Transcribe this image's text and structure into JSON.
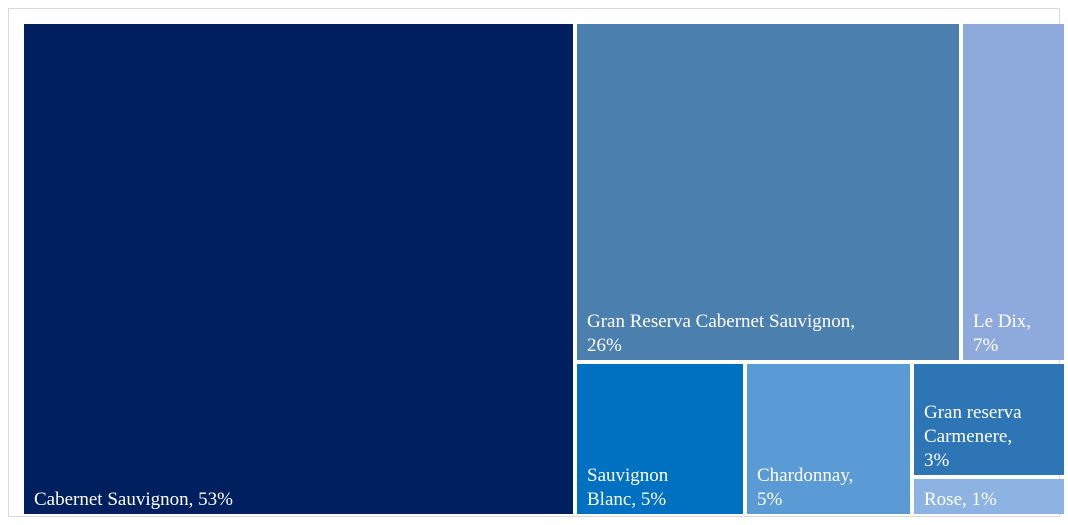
{
  "chart_data": {
    "type": "treemap",
    "title": "",
    "items": [
      {
        "name": "Cabernet Sauvignon",
        "label": "Cabernet Sauvignon, 53%",
        "value": 53,
        "color": "#001f5f"
      },
      {
        "name": "Gran Reserva Cabernet Sauvignon",
        "label": "Gran Reserva Cabernet Sauvignon, 26%",
        "value": 26,
        "color": "#4a7fae"
      },
      {
        "name": "Le Dix",
        "label": "Le Dix, 7%",
        "value": 7,
        "color": "#8eaadc"
      },
      {
        "name": "Sauvignon Blanc",
        "label": "Sauvignon Blanc, 5%",
        "value": 5,
        "color": "#0070c0"
      },
      {
        "name": "Chardonnay",
        "label": "Chardonnay, 5%",
        "value": 5,
        "color": "#5b9bd5"
      },
      {
        "name": "Gran reserva Carmenere",
        "label": "Gran reserva Carmenere, 3%",
        "value": 3,
        "color": "#2e75b6"
      },
      {
        "name": "Rose",
        "label": "Rose, 1%",
        "value": 1,
        "color": "#8db3e2"
      }
    ]
  }
}
